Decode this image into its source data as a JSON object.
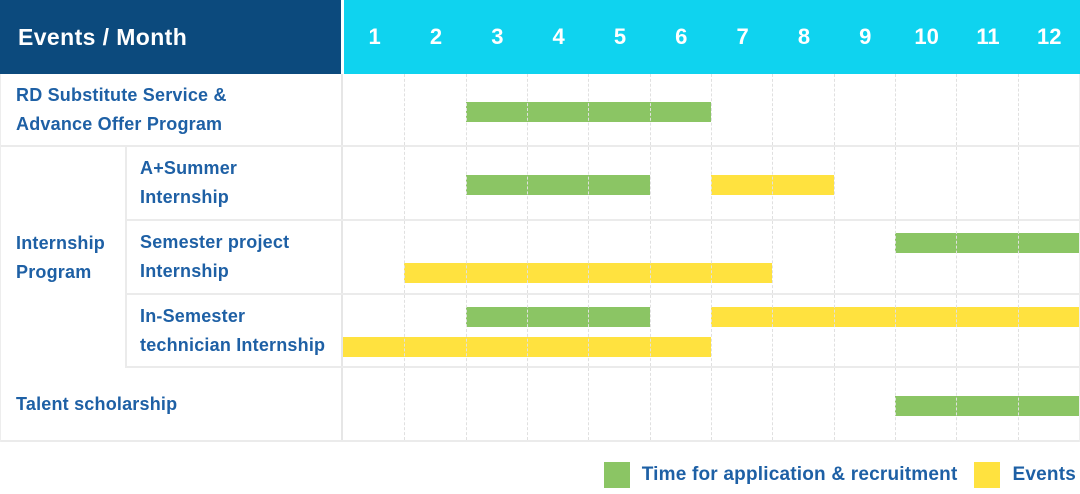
{
  "header": {
    "title": "Events / Month"
  },
  "colors": {
    "application": "#8bc564",
    "events": "#ffe23f",
    "header_bg": "#0c4a7d",
    "months_bg": "#0fd3ef",
    "label_text": "#1e60a5",
    "grid": "#e0e0e0"
  },
  "chart_data": {
    "type": "bar",
    "variant": "gantt",
    "x_axis": {
      "label": "Month",
      "ticks": [
        "1",
        "2",
        "3",
        "4",
        "5",
        "6",
        "7",
        "8",
        "9",
        "10",
        "11",
        "12"
      ],
      "range": [
        1,
        12
      ],
      "grid": "dashed-vertical"
    },
    "series": [
      {
        "key": "application",
        "name": "Time for application & recruitment",
        "color": "#8bc564"
      },
      {
        "key": "events",
        "name": "Events",
        "color": "#ffe23f"
      }
    ],
    "group": {
      "label_lines": [
        "Internship",
        "Program"
      ]
    },
    "rows": [
      {
        "id": "rd-substitute",
        "label_lines": [
          "RD Substitute Service &",
          "Advance Offer Program"
        ],
        "bars": [
          {
            "series": "application",
            "from_month": 3,
            "to_month": 6,
            "row_line": "mid"
          }
        ]
      },
      {
        "id": "a-summer-internship",
        "label_lines": [
          "A+Summer",
          "Internship"
        ],
        "bars": [
          {
            "series": "application",
            "from_month": 3,
            "to_month": 5,
            "row_line": "mid"
          },
          {
            "series": "events",
            "from_month": 7,
            "to_month": 8,
            "row_line": "mid"
          }
        ]
      },
      {
        "id": "semester-project-internship",
        "label_lines": [
          "Semester project",
          "Internship"
        ],
        "bars": [
          {
            "series": "application",
            "from_month": 10,
            "to_month": 12,
            "row_line": "top"
          },
          {
            "series": "events",
            "from_month": 2,
            "to_month": 7,
            "row_line": "bottom"
          }
        ]
      },
      {
        "id": "in-semester-technician-internship",
        "label_lines": [
          "In-Semester",
          "technician Internship"
        ],
        "bars": [
          {
            "series": "application",
            "from_month": 3,
            "to_month": 5,
            "row_line": "top"
          },
          {
            "series": "events",
            "from_month": 7,
            "to_month": 12,
            "row_line": "top"
          },
          {
            "series": "events",
            "from_month": 1,
            "to_month": 6,
            "row_line": "bottom"
          }
        ]
      },
      {
        "id": "talent-scholarship",
        "label_lines": [
          "Talent scholarship"
        ],
        "bars": [
          {
            "series": "application",
            "from_month": 10,
            "to_month": 12,
            "row_line": "mid"
          }
        ]
      }
    ],
    "legend": [
      {
        "series": "application",
        "label": "Time for application & recruitment"
      },
      {
        "series": "events",
        "label": "Events"
      }
    ]
  }
}
